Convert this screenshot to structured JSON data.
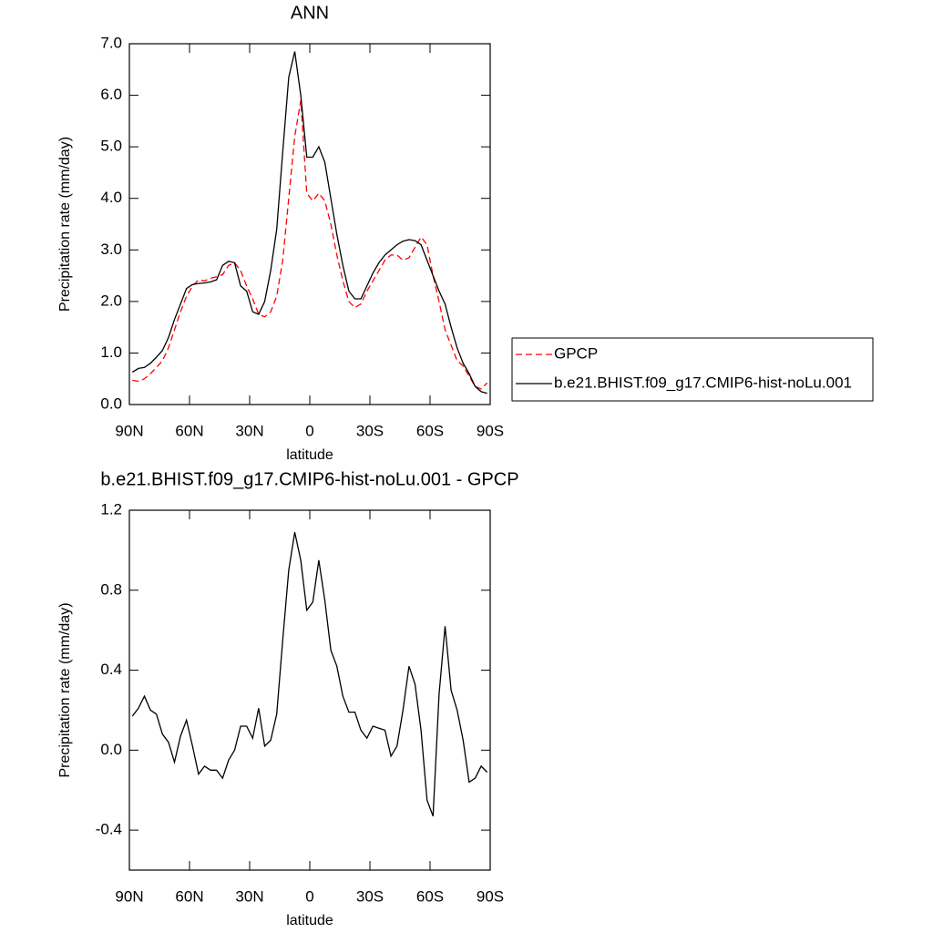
{
  "chart_data": [
    {
      "type": "line",
      "title": "ANN",
      "xlabel": "latitude",
      "ylabel": "Precipitation rate (mm/day)",
      "x": [
        88.5,
        85.5,
        82.5,
        79.5,
        76.5,
        73.5,
        70.5,
        67.5,
        64.5,
        61.5,
        58.5,
        55.5,
        52.5,
        49.5,
        46.5,
        43.5,
        40.5,
        37.5,
        34.5,
        31.5,
        28.5,
        25.5,
        22.5,
        19.5,
        16.5,
        13.5,
        10.5,
        7.5,
        4.5,
        1.5,
        -1.5,
        -4.5,
        -7.5,
        -10.5,
        -13.5,
        -16.5,
        -19.5,
        -22.5,
        -25.5,
        -28.5,
        -31.5,
        -34.5,
        -37.5,
        -40.5,
        -43.5,
        -46.5,
        -49.5,
        -52.5,
        -55.5,
        -58.5,
        -61.5,
        -64.5,
        -67.5,
        -70.5,
        -73.5,
        -76.5,
        -79.5,
        -82.5,
        -85.5,
        -88.5
      ],
      "series": [
        {
          "name": "GPCP",
          "color": "#ff0000",
          "linestyle": "dashed",
          "values": [
            0.47,
            0.45,
            0.5,
            0.6,
            0.72,
            0.85,
            1.1,
            1.45,
            1.8,
            2.1,
            2.3,
            2.42,
            2.4,
            2.45,
            2.48,
            2.52,
            2.7,
            2.75,
            2.6,
            2.3,
            2.05,
            1.75,
            1.7,
            1.8,
            2.1,
            2.8,
            4.0,
            5.2,
            5.9,
            4.1,
            3.95,
            4.1,
            3.95,
            3.5,
            2.9,
            2.4,
            2.0,
            1.88,
            1.95,
            2.2,
            2.4,
            2.6,
            2.8,
            2.9,
            2.9,
            2.8,
            2.85,
            3.05,
            3.25,
            3.1,
            2.5,
            2.0,
            1.45,
            1.15,
            0.85,
            0.75,
            0.55,
            0.35,
            0.3,
            0.42
          ]
        },
        {
          "name": "b.e21.BHIST.f09_g17.CMIP6-hist-noLu.001",
          "color": "#000000",
          "linestyle": "solid",
          "values": [
            0.63,
            0.7,
            0.72,
            0.8,
            0.92,
            1.05,
            1.3,
            1.65,
            1.95,
            2.25,
            2.33,
            2.35,
            2.36,
            2.38,
            2.42,
            2.7,
            2.78,
            2.75,
            2.3,
            2.2,
            1.8,
            1.75,
            2.0,
            2.6,
            3.4,
            4.9,
            6.35,
            6.85,
            6.0,
            4.8,
            4.8,
            5.0,
            4.7,
            4.0,
            3.3,
            2.7,
            2.2,
            2.05,
            2.05,
            2.3,
            2.55,
            2.75,
            2.9,
            3.0,
            3.1,
            3.17,
            3.2,
            3.18,
            3.1,
            2.8,
            2.5,
            2.2,
            1.95,
            1.5,
            1.1,
            0.8,
            0.6,
            0.35,
            0.25,
            0.22
          ]
        }
      ],
      "xlim": [
        90,
        -90
      ],
      "xticks": [
        {
          "value": 90,
          "label": "90N"
        },
        {
          "value": 60,
          "label": "60N"
        },
        {
          "value": 30,
          "label": "30N"
        },
        0,
        {
          "value": -30,
          "label": "30S"
        },
        {
          "value": -60,
          "label": "60S"
        },
        {
          "value": -90,
          "label": "90S"
        }
      ],
      "ylim": [
        0,
        7
      ],
      "yticks": [
        {
          "value": 0,
          "label": "0.0"
        },
        {
          "value": 1,
          "label": "1.0"
        },
        {
          "value": 2,
          "label": "2.0"
        },
        {
          "value": 3,
          "label": "3.0"
        },
        {
          "value": 4,
          "label": "4.0"
        },
        {
          "value": 5,
          "label": "5.0"
        },
        {
          "value": 6,
          "label": "6.0"
        },
        {
          "value": 7,
          "label": "7.0"
        }
      ],
      "legend": "outside-right"
    },
    {
      "type": "line",
      "title": "b.e21.BHIST.f09_g17.CMIP6-hist-noLu.001 - GPCP",
      "xlabel": "latitude",
      "ylabel": "Precipitation rate (mm/day)",
      "x": [
        88.5,
        85.5,
        82.5,
        79.5,
        76.5,
        73.5,
        70.5,
        67.5,
        64.5,
        61.5,
        58.5,
        55.5,
        52.5,
        49.5,
        46.5,
        43.5,
        40.5,
        37.5,
        34.5,
        31.5,
        28.5,
        25.5,
        22.5,
        19.5,
        16.5,
        13.5,
        10.5,
        7.5,
        4.5,
        1.5,
        -1.5,
        -4.5,
        -7.5,
        -10.5,
        -13.5,
        -16.5,
        -19.5,
        -22.5,
        -25.5,
        -28.5,
        -31.5,
        -34.5,
        -37.5,
        -40.5,
        -43.5,
        -46.5,
        -49.5,
        -52.5,
        -55.5,
        -58.5,
        -61.5,
        -64.5,
        -67.5,
        -70.5,
        -73.5,
        -76.5,
        -79.5,
        -82.5,
        -85.5,
        -88.5
      ],
      "color": "#000000",
      "values": [
        0.17,
        0.21,
        0.27,
        0.2,
        0.18,
        0.08,
        0.04,
        -0.06,
        0.07,
        0.15,
        0.02,
        -0.12,
        -0.08,
        -0.1,
        -0.1,
        -0.14,
        -0.05,
        0.0,
        0.12,
        0.12,
        0.06,
        0.21,
        0.02,
        0.05,
        0.18,
        0.55,
        0.9,
        1.09,
        0.95,
        0.7,
        0.74,
        0.95,
        0.75,
        0.5,
        0.42,
        0.27,
        0.19,
        0.19,
        0.1,
        0.06,
        0.12,
        0.11,
        0.1,
        -0.03,
        0.02,
        0.2,
        0.42,
        0.33,
        0.1,
        -0.25,
        -0.33,
        0.28,
        0.62,
        0.3,
        0.2,
        0.05,
        -0.16,
        -0.14,
        -0.08,
        -0.11
      ],
      "xlim": [
        90,
        -90
      ],
      "xticks": [
        {
          "value": 90,
          "label": "90N"
        },
        {
          "value": 60,
          "label": "60N"
        },
        {
          "value": 30,
          "label": "30N"
        },
        0,
        {
          "value": -30,
          "label": "30S"
        },
        {
          "value": -60,
          "label": "60S"
        },
        {
          "value": -90,
          "label": "90S"
        }
      ],
      "ylim": [
        -0.6,
        1.2
      ],
      "yticks": [
        -0.4,
        {
          "value": 0,
          "label": "0.0"
        },
        0.4,
        0.8,
        1.2
      ]
    }
  ]
}
